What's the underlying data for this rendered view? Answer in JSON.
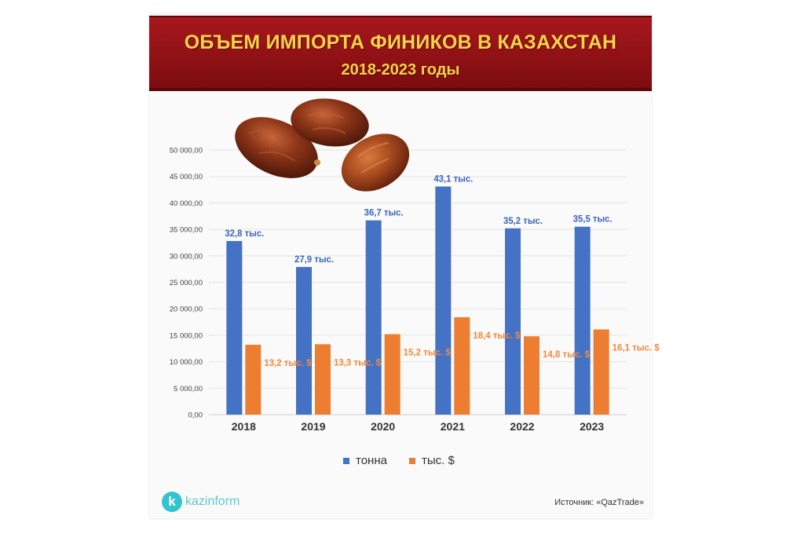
{
  "header": {
    "title": "ОБЪЕМ ИМПОРТА ФИНИКОВ В КАЗАХСТАН",
    "subtitle": "2018-2023 годы"
  },
  "colors": {
    "tonna": "#4472c4",
    "usd": "#ed7d31",
    "label_tonna": "#3a64b8",
    "label_usd": "#ef8a3c"
  },
  "chart_data": {
    "type": "bar",
    "categories": [
      "2018",
      "2019",
      "2020",
      "2021",
      "2022",
      "2023"
    ],
    "ylim": [
      0,
      50000
    ],
    "ytick_labels": [
      "0,00",
      "5 000,00",
      "10 000,00",
      "15 000,00",
      "20 000,00",
      "25 000,00",
      "30 000,00",
      "35 000,00",
      "40 000,00",
      "45 000,00",
      "50 000,00"
    ],
    "grid": true,
    "legend_position": "bottom",
    "series": [
      {
        "name": "тонна",
        "values": [
          32800,
          27900,
          36700,
          43100,
          35200,
          35500
        ],
        "data_labels": [
          "32,8 тыс.",
          "27,9 тыс.",
          "36,7 тыс.",
          "43,1 тыс.",
          "35,2 тыс.",
          "35,5 тыс."
        ]
      },
      {
        "name": "тыс. $",
        "values": [
          13200,
          13300,
          15200,
          18400,
          14800,
          16100
        ],
        "data_labels": [
          "13,2 тыс. $",
          "13,3 тыс. $",
          "15,2 тыс. $",
          "18,4 тыс. $",
          "14,8 тыс. $",
          "16,1 тыс. $"
        ]
      }
    ]
  },
  "legend": {
    "tonna": "тонна",
    "usd": "тыс. $"
  },
  "logo": {
    "letter": "k",
    "name": "kazinform"
  },
  "source": "Источник: «QazTrade»",
  "illustration": "dates-fruit-image"
}
